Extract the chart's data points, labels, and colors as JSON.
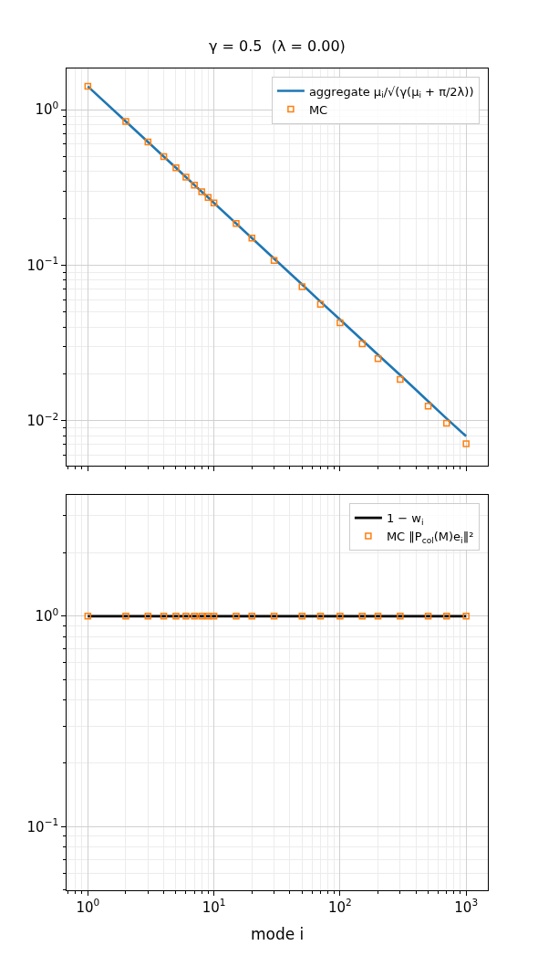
{
  "chart_data": [
    {
      "type": "line",
      "title": "γ = 0.5  (λ = 0.00)",
      "log": "xy",
      "grid": true,
      "legend": "top right",
      "tick_labels": "y",
      "xlim": [
        0.68,
        1490
      ],
      "xticks": [
        {
          "value": 1,
          "label": "10$^{0}$"
        },
        {
          "value": 10,
          "label": "10$^{1}$"
        },
        {
          "value": 100,
          "label": "10$^{2}$"
        },
        {
          "value": 1000,
          "label": "10$^{3}$"
        }
      ],
      "ylim": [
        0.0051,
        1.84
      ],
      "yticks": [
        {
          "value": 0.01,
          "label": "10$^{−2}$"
        },
        {
          "value": 0.1,
          "label": "10$^{−1}$"
        },
        {
          "value": 1,
          "label": "10$^{0}$"
        }
      ],
      "series": [
        {
          "name": "aggregate μ$_{i}$/√(γ(μ$_{i}$ + π/2λ))",
          "color": "#1f77b4",
          "line_style": "solid",
          "marker": "none",
          "x": [
            1,
            2,
            3,
            4,
            5,
            6,
            7,
            8,
            9,
            10,
            15,
            20,
            30,
            50,
            70,
            100,
            150,
            200,
            300,
            500,
            700,
            1000
          ],
          "values": [
            1.41,
            0.838,
            0.619,
            0.498,
            0.422,
            0.368,
            0.327,
            0.296,
            0.272,
            0.251,
            0.185,
            0.149,
            0.11,
            0.075,
            0.0582,
            0.0446,
            0.0329,
            0.0265,
            0.0196,
            0.0133,
            0.0103,
            0.00793
          ]
        },
        {
          "name": "MC",
          "type": "scatter",
          "color": "#ff7f0e",
          "marker": "square",
          "x": [
            1,
            2,
            3,
            4,
            5,
            6,
            7,
            8,
            9,
            10,
            15,
            20,
            30,
            50,
            70,
            100,
            150,
            200,
            300,
            500,
            700,
            1000
          ],
          "values": [
            1.41,
            0.838,
            0.619,
            0.498,
            0.422,
            0.368,
            0.327,
            0.296,
            0.272,
            0.251,
            0.185,
            0.149,
            0.107,
            0.0725,
            0.056,
            0.0425,
            0.0312,
            0.025,
            0.0184,
            0.0124,
            0.0096,
            0.0071
          ]
        }
      ]
    },
    {
      "type": "line",
      "xlabel": "mode i",
      "log": "xy",
      "grid": true,
      "legend": "top right",
      "xlim": [
        0.68,
        1490
      ],
      "xticks": [
        {
          "value": 1,
          "label": "10$^{0}$"
        },
        {
          "value": 10,
          "label": "10$^{1}$"
        },
        {
          "value": 100,
          "label": "10$^{2}$"
        },
        {
          "value": 1000,
          "label": "10$^{3}$"
        }
      ],
      "ylim": [
        0.05,
        3.75
      ],
      "yticks": [
        {
          "value": 0.1,
          "label": "10$^{−1}$"
        },
        {
          "value": 1,
          "label": "10$^{0}$"
        }
      ],
      "series": [
        {
          "name": "1 − w$_{i}$",
          "color": "#000000",
          "line_style": "solid",
          "marker": "none",
          "x": [
            1,
            1000
          ],
          "values": [
            1,
            1
          ]
        },
        {
          "name": "MC ‖P$_{col}$(M)e$_{i}$‖²",
          "type": "scatter",
          "color": "#ff7f0e",
          "marker": "square",
          "x": [
            1,
            2,
            3,
            4,
            5,
            6,
            7,
            8,
            9,
            10,
            15,
            20,
            30,
            50,
            70,
            100,
            150,
            200,
            300,
            500,
            700,
            1000
          ],
          "values": [
            1,
            1,
            1,
            1,
            1,
            1,
            1,
            1,
            1,
            1,
            1,
            1,
            1,
            1,
            1,
            1,
            1,
            1,
            1,
            1,
            1,
            1
          ]
        }
      ]
    }
  ]
}
